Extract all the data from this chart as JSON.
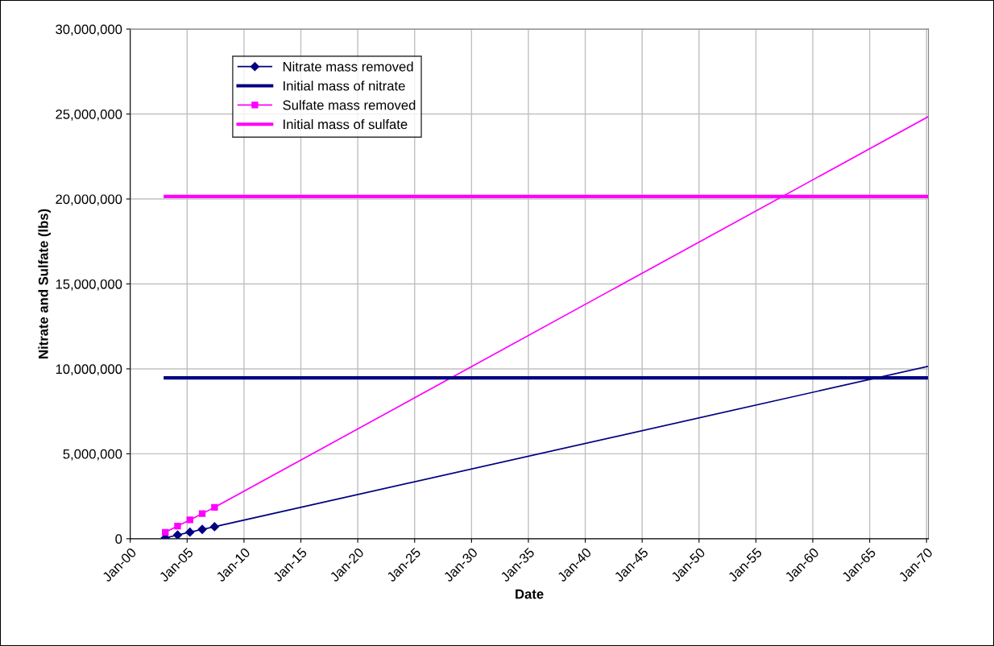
{
  "chart_data": {
    "type": "line",
    "xlabel": "Date",
    "ylabel": "Nitrate and Sulfate (lbs)",
    "xlim": [
      "2000-01-01",
      "2070-03-01"
    ],
    "xticks": [
      {
        "value": "2000-01-01",
        "label": "Jan-00"
      },
      {
        "value": "2005-01-01",
        "label": "Jan-05"
      },
      {
        "value": "2010-01-01",
        "label": "Jan-10"
      },
      {
        "value": "2015-01-01",
        "label": "Jan-15"
      },
      {
        "value": "2020-01-01",
        "label": "Jan-20"
      },
      {
        "value": "2025-01-01",
        "label": "Jan-25"
      },
      {
        "value": "2030-01-01",
        "label": "Jan-30"
      },
      {
        "value": "2035-01-01",
        "label": "Jan-35"
      },
      {
        "value": "2040-01-01",
        "label": "Jan-40"
      },
      {
        "value": "2045-01-01",
        "label": "Jan-45"
      },
      {
        "value": "2050-01-01",
        "label": "Jan-50"
      },
      {
        "value": "2055-01-01",
        "label": "Jan-55"
      },
      {
        "value": "2060-01-01",
        "label": "Jan-60"
      },
      {
        "value": "2065-01-01",
        "label": "Jan-65"
      },
      {
        "value": "2070-01-01",
        "label": "Jan-70"
      }
    ],
    "ylim": [
      0,
      30000000
    ],
    "yticks": [
      {
        "value": 0,
        "label": "0"
      },
      {
        "value": 5000000,
        "label": "5,000,000"
      },
      {
        "value": 10000000,
        "label": "10,000,000"
      },
      {
        "value": 15000000,
        "label": "15,000,000"
      },
      {
        "value": 20000000,
        "label": "20,000,000"
      },
      {
        "value": 25000000,
        "label": "25,000,000"
      },
      {
        "value": 30000000,
        "label": "30,000,000"
      }
    ],
    "grid": true,
    "legend": "top left",
    "series": [
      {
        "color": "#000080",
        "x": [
          "2007-06",
          "2070-03"
        ],
        "values": [
          710000,
          10150000
        ]
      },
      {
        "color": "#ff00ff",
        "x": [
          "2007-06",
          "2070-03"
        ],
        "values": [
          1850000,
          24850000
        ]
      },
      {
        "name": "Nitrate mass removed",
        "color": "#000080",
        "marker": "diamond",
        "x": [
          "2003-02",
          "2004-03",
          "2005-04",
          "2006-05",
          "2007-06"
        ],
        "values": [
          50000,
          220000,
          390000,
          550000,
          710000
        ]
      },
      {
        "name": "Initial mass of nitrate",
        "color": "#000080",
        "x": [
          "2003-02",
          "2070-03"
        ],
        "values": [
          9470000,
          9470000
        ]
      },
      {
        "name": "Sulfate mass removed",
        "color": "#ff00ff",
        "marker": "square",
        "x": [
          "2003-02",
          "2004-03",
          "2005-04",
          "2006-05",
          "2007-06"
        ],
        "values": [
          380000,
          750000,
          1110000,
          1480000,
          1850000
        ]
      },
      {
        "name": "Initial mass of sulfate",
        "color": "#ff00ff",
        "x": [
          "2003-02",
          "2070-03"
        ],
        "values": [
          20150000,
          20150000
        ]
      }
    ]
  }
}
